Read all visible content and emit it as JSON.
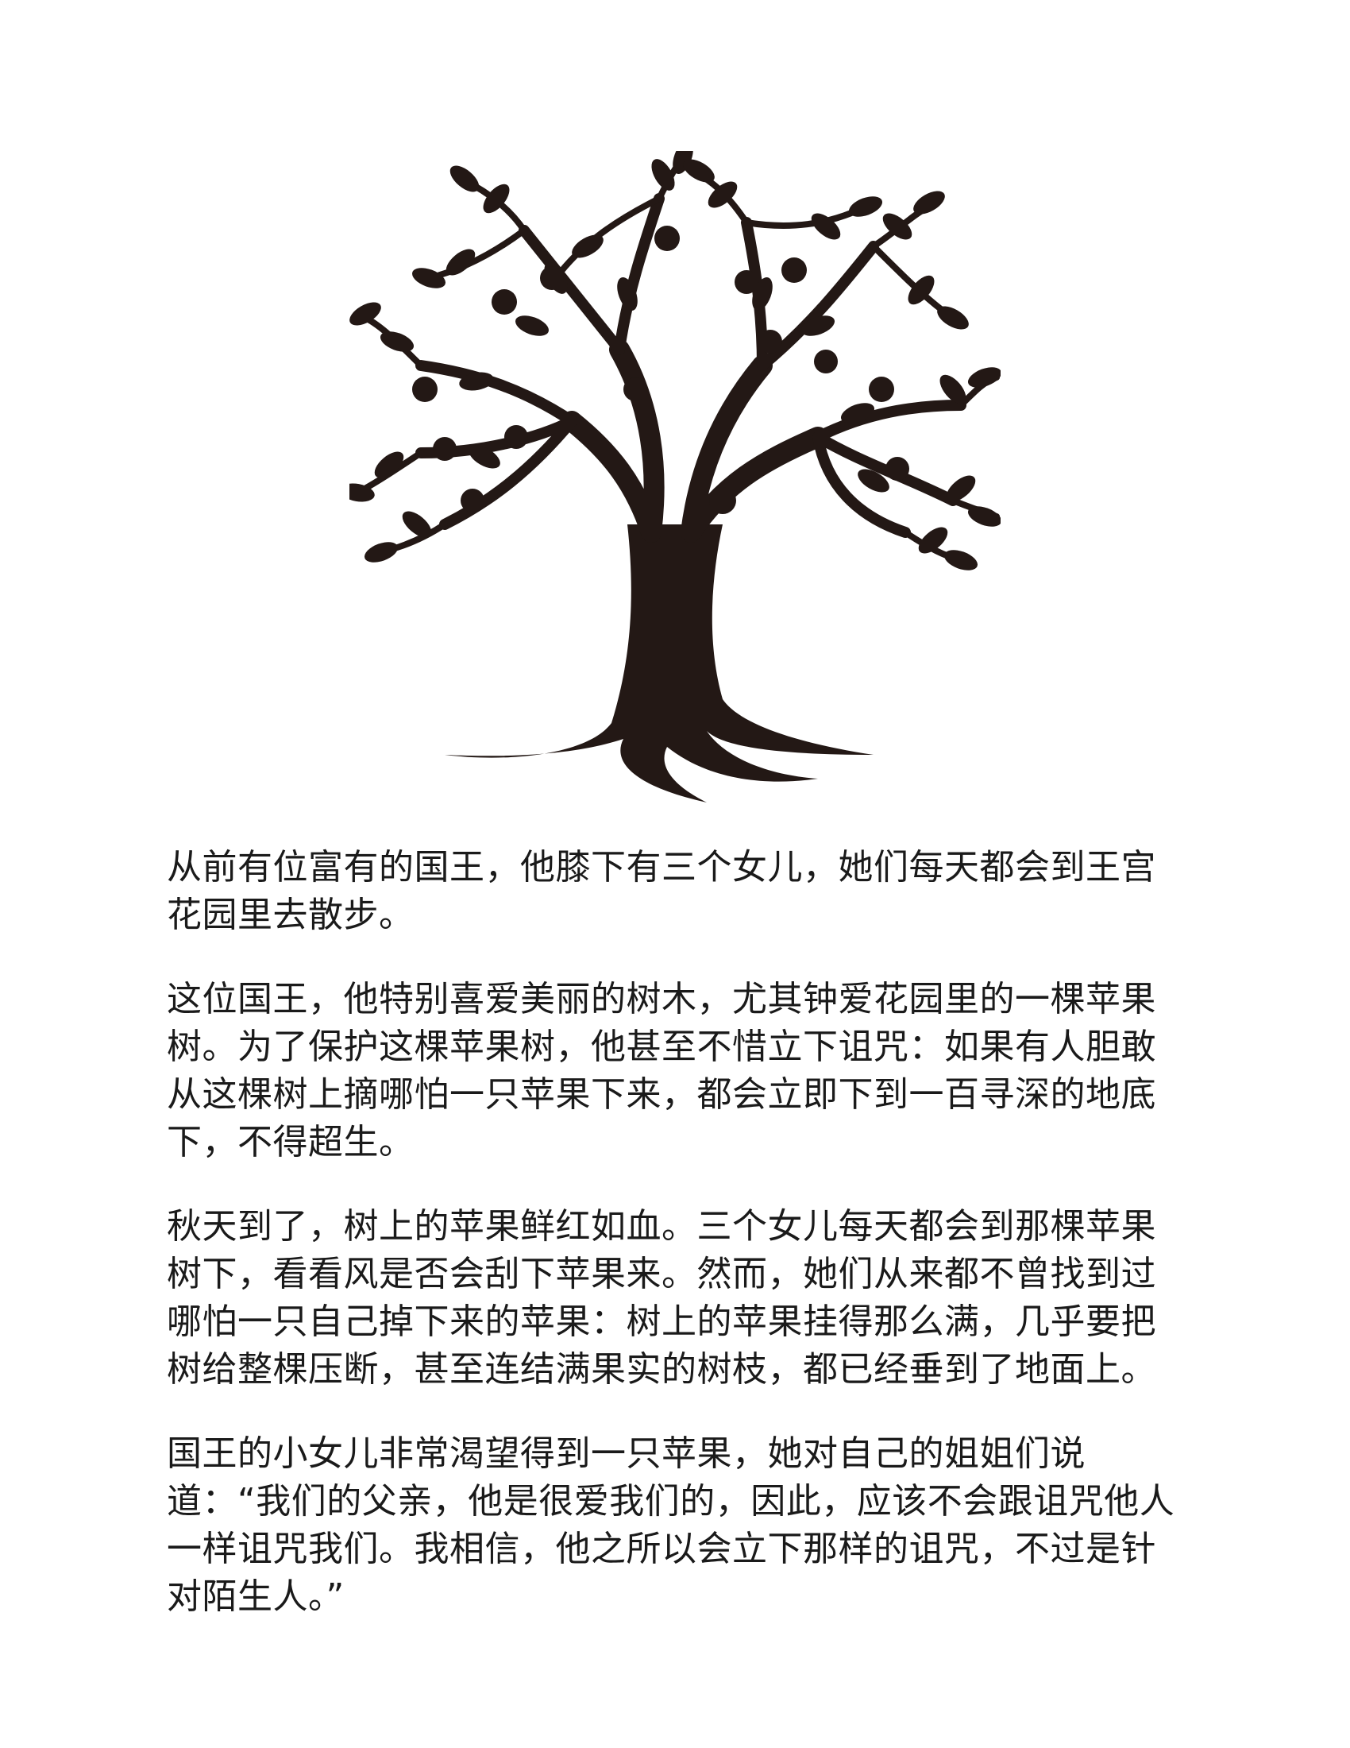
{
  "illustration": {
    "icon": "apple-tree-icon",
    "color": "#231815"
  },
  "story": {
    "paragraphs": [
      "从前有位富有的国王，他膝下有三个女儿，她们每天都会到王宫花园里去散步。",
      "这位国王，他特别喜爱美丽的树木，尤其钟爱花园里的一棵苹果树。为了保护这棵苹果树，他甚至不惜立下诅咒：如果有人胆敢从这棵树上摘哪怕一只苹果下来，都会立即下到一百寻深的地底下，不得超生。",
      "秋天到了，树上的苹果鲜红如血。三个女儿每天都会到那棵苹果树下，看看风是否会刮下苹果来。然而，她们从来都不曾找到过哪怕一只自己掉下来的苹果：树上的苹果挂得那么满，几乎要把树给整棵压断，甚至连结满果实的树枝，都已经垂到了地面上。",
      "国王的小女儿非常渴望得到一只苹果，她对自己的姐姐们说道：“我们的父亲，他是很爱我们的，因此，应该不会跟诅咒他人一样诅咒我们。我相信，他之所以会立下那样的诅咒，不过是针对陌生人。”"
    ]
  }
}
